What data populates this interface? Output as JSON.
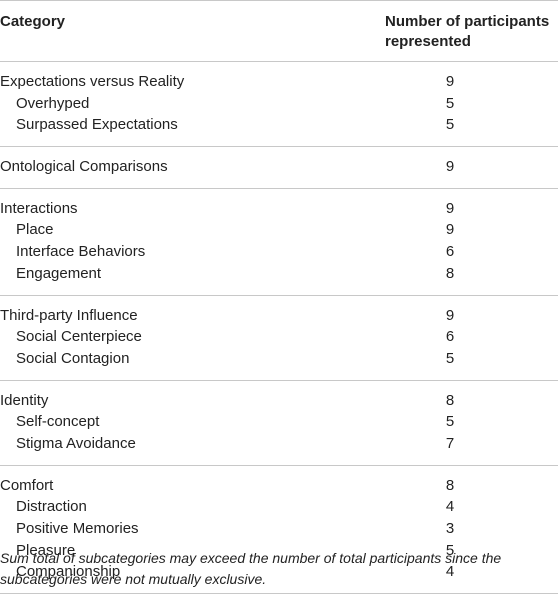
{
  "header": {
    "category": "Category",
    "participants": "Number of participants represented"
  },
  "groups": [
    {
      "category": "Expectations versus Reality",
      "count": "9",
      "subcategories": [
        {
          "label": "Overhyped",
          "count": "5"
        },
        {
          "label": "Surpassed Expectations",
          "count": "5"
        }
      ]
    },
    {
      "category": "Ontological Comparisons",
      "count": "9",
      "subcategories": []
    },
    {
      "category": "Interactions",
      "count": "9",
      "subcategories": [
        {
          "label": "Place",
          "count": "9"
        },
        {
          "label": "Interface Behaviors",
          "count": "6"
        },
        {
          "label": "Engagement",
          "count": "8"
        }
      ]
    },
    {
      "category": "Third-party Influence",
      "count": "9",
      "subcategories": [
        {
          "label": "Social Centerpiece",
          "count": "6"
        },
        {
          "label": "Social Contagion",
          "count": "5"
        }
      ]
    },
    {
      "category": "Identity",
      "count": "8",
      "subcategories": [
        {
          "label": "Self-concept",
          "count": "5"
        },
        {
          "label": "Stigma Avoidance",
          "count": "7"
        }
      ]
    },
    {
      "category": "Comfort",
      "count": "8",
      "subcategories": [
        {
          "label": "Distraction",
          "count": "4"
        },
        {
          "label": "Positive Memories",
          "count": "3"
        },
        {
          "label": "Pleasure",
          "count": "5"
        },
        {
          "label": "Companionship",
          "count": "4"
        }
      ]
    }
  ],
  "footnote": "Sum total of subcategories may exceed the number of total participants since the subcategories were not mutually exclusive."
}
